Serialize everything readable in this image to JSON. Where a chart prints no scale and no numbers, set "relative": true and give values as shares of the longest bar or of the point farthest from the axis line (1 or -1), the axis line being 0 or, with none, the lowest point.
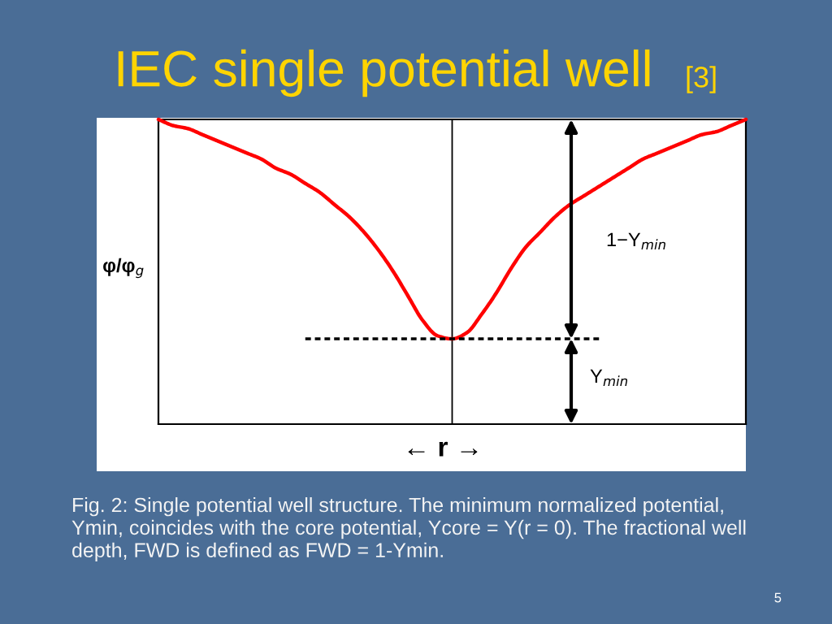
{
  "chart_data": {
    "type": "line",
    "title": "IEC single potential well",
    "ylabel": "φ/φ$_{g}$",
    "xlabel": "← r →",
    "annotations": [
      "[3]",
      "1−Y$_{min}$",
      "Y$_{min}$",
      "Fig. 2: Single potential well structure. The minimum normalized potential, Ymin, coincides with the core potential, Ycore = Y(r = 0). The fractional well depth, FWD is defined as FWD = 1-Ymin.",
      "5"
    ],
    "categories": [
      null,
      null,
      null,
      null,
      null,
      null,
      null,
      null,
      null,
      null,
      null,
      null,
      null,
      null,
      null,
      null,
      null,
      null,
      null,
      null,
      null,
      null,
      null,
      null,
      null,
      null,
      null,
      null,
      null,
      null,
      null,
      null,
      null,
      null,
      null,
      null,
      null,
      null,
      null,
      null,
      null
    ],
    "relative": true,
    "series": [
      {
        "color": "#ff0000",
        "values": [
          1.0,
          0.98,
          0.97,
          0.95,
          0.93,
          0.91,
          0.89,
          0.87,
          0.84,
          0.82,
          0.79,
          0.76,
          0.72,
          0.68,
          0.63,
          0.57,
          0.5,
          0.42,
          0.34,
          0.29,
          0.28,
          0.3,
          0.36,
          0.43,
          0.51,
          0.58,
          0.63,
          0.68,
          0.72,
          0.75,
          0.78,
          0.81,
          0.84,
          0.87,
          0.89,
          0.91,
          0.93,
          0.95,
          0.96,
          0.98,
          1.0
        ]
      },
      {
        "color": "#000000",
        "line_style": "dashed",
        "values": [
          null,
          null,
          null,
          null,
          null,
          null,
          null,
          null,
          null,
          null,
          0.28,
          0.28,
          0.28,
          0.28,
          0.28,
          0.28,
          0.28,
          0.28,
          0.28,
          0.28,
          0.28,
          0.28,
          0.28,
          0.28,
          0.28,
          0.28,
          0.28,
          0.28,
          0.28,
          0.28,
          0.28,
          null,
          null,
          null,
          null,
          null,
          null,
          null,
          null,
          null,
          null
        ]
      }
    ]
  }
}
